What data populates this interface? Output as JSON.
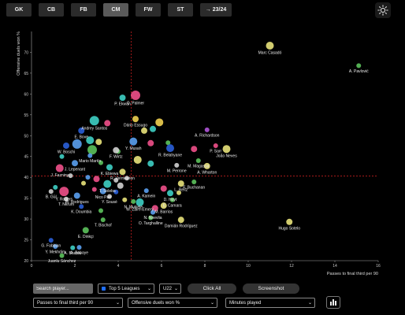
{
  "position_tabs": [
    {
      "label": "GK",
      "active": false
    },
    {
      "label": "CB",
      "active": false
    },
    {
      "label": "FB",
      "active": false
    },
    {
      "label": "CM",
      "active": true
    },
    {
      "label": "FW",
      "active": false
    },
    {
      "label": "ST",
      "active": false
    },
    {
      "label": "→ 23/24",
      "active": false
    }
  ],
  "theme_toggle": {
    "icon": "sun-icon"
  },
  "controls": {
    "search_placeholder": "Search player...",
    "league_select": "Top 5 Leagues",
    "age_select": "U22",
    "click_all_label": "Click All",
    "screenshot_label": "Screenshot",
    "x_metric": "Passes to final third per 90",
    "y_metric": "Offensive duels won %",
    "size_metric": "Minutes played",
    "chart_type_icon": "bar-chart-icon"
  },
  "chart_data": {
    "type": "scatter",
    "xlabel": "Passes to final third per 90",
    "ylabel": "Offensive duels won %",
    "xlim": [
      0,
      16
    ],
    "ylim": [
      20,
      75
    ],
    "xticks": [
      0,
      2,
      4,
      6,
      8,
      10,
      12,
      14,
      16
    ],
    "yticks": [
      20,
      25,
      30,
      35,
      40,
      45,
      50,
      55,
      60,
      65,
      70
    ],
    "x_mean": 4.6,
    "y_mean": 40.3,
    "grid": false,
    "points": [
      {
        "name": "Marc Casadó",
        "x": 11.0,
        "y": 71.6,
        "r": 5,
        "color": "#e8e27a"
      },
      {
        "name": "A. Pavlović",
        "x": 15.1,
        "y": 66.8,
        "r": 3,
        "color": "#5cc25c"
      },
      {
        "name": "P. Ekwah",
        "x": 4.2,
        "y": 59.1,
        "r": 4,
        "color": "#3ecfc4"
      },
      {
        "name": "C. Palmer",
        "x": 4.8,
        "y": 59.7,
        "r": 6,
        "color": "#f0508a"
      },
      {
        "name": "Dário Essugo",
        "x": 4.8,
        "y": 54.0,
        "r": 4,
        "color": "#f0d050"
      },
      {
        "name": "Andrey Santos",
        "x": 2.9,
        "y": 53.6,
        "r": 6,
        "color": "#3ecfc4"
      },
      {
        "name": "E. Bove",
        "x": 2.3,
        "y": 51.2,
        "r": 4,
        "color": "#2a5fd8"
      },
      {
        "name": "A. Richardson",
        "x": 8.1,
        "y": 51.4,
        "r": 3,
        "color": "#b055d8"
      },
      {
        "name": "Y. Musah",
        "x": 4.7,
        "y": 48.6,
        "r": 5,
        "color": "#5aa0f0"
      },
      {
        "name": "W. Boschi",
        "x": 1.6,
        "y": 47.6,
        "r": 4,
        "color": "#2a5fd8"
      },
      {
        "name": "F. Wirtz",
        "x": 3.9,
        "y": 46.5,
        "r": 4,
        "color": "#d0d0d0"
      },
      {
        "name": "R. Belahyane",
        "x": 6.4,
        "y": 47.0,
        "r": 5,
        "color": "#2a5fd8"
      },
      {
        "name": "P. Sarr",
        "x": 8.5,
        "y": 47.6,
        "r": 3,
        "color": "#f0508a"
      },
      {
        "name": "João Neves",
        "x": 9.0,
        "y": 46.8,
        "r": 5,
        "color": "#e8e27a"
      },
      {
        "name": "Mario Martín",
        "x": 2.7,
        "y": 45.2,
        "r": 3,
        "color": "#5aa0f0"
      },
      {
        "name": "J. Lepenant",
        "x": 2.0,
        "y": 43.4,
        "r": 4,
        "color": "#5aa0f0"
      },
      {
        "name": "M. Magassa",
        "x": 7.7,
        "y": 44.0,
        "r": 3,
        "color": "#5cc25c"
      },
      {
        "name": "M. Perrone",
        "x": 6.7,
        "y": 42.9,
        "r": 3,
        "color": "#d0d0d0"
      },
      {
        "name": "A. Wharton",
        "x": 8.1,
        "y": 42.7,
        "r": 4,
        "color": "#e8e27a"
      },
      {
        "name": "J. Fazniny",
        "x": 1.3,
        "y": 42.2,
        "r": 5,
        "color": "#f0508a"
      },
      {
        "name": "K. Ebiewa",
        "x": 3.6,
        "y": 42.4,
        "r": 4,
        "color": "#3ecfc4"
      },
      {
        "name": "R. Vermeeren",
        "x": 4.2,
        "y": 41.3,
        "r": 4,
        "color": "#e8e27a"
      },
      {
        "name": "T. Soleba",
        "x": 3.5,
        "y": 38.4,
        "r": 5,
        "color": "#3ecfc4"
      },
      {
        "name": "L. Reitz",
        "x": 6.9,
        "y": 38.5,
        "r": 4,
        "color": "#e8e27a"
      },
      {
        "name": "F. Buchanan",
        "x": 7.5,
        "y": 38.9,
        "r": 3,
        "color": "#5cc25c"
      },
      {
        "name": "A. Kamein",
        "x": 5.3,
        "y": 36.8,
        "r": 3,
        "color": "#5aa0f0"
      },
      {
        "name": "D. Hoyt",
        "x": 6.4,
        "y": 36.2,
        "r": 4,
        "color": "#3ecfc4"
      },
      {
        "name": "B. Gül",
        "x": 0.9,
        "y": 36.6,
        "r": 3,
        "color": "#d0d0d0"
      },
      {
        "name": "Y. Rogers",
        "x": 1.5,
        "y": 36.6,
        "r": 6,
        "color": "#f0508a"
      },
      {
        "name": "Nico Paz",
        "x": 3.3,
        "y": 36.7,
        "r": 4,
        "color": "#5aa0f0"
      },
      {
        "name": "Y. Sousé",
        "x": 3.6,
        "y": 35.4,
        "r": 3,
        "color": "#d0d0d0"
      },
      {
        "name": "E. Camara",
        "x": 6.5,
        "y": 34.6,
        "r": 3,
        "color": "#5cc25c"
      },
      {
        "name": "M. Rodrigues",
        "x": 2.1,
        "y": 35.6,
        "r": 4,
        "color": "#5aa0f0"
      },
      {
        "name": "T. Nkrum",
        "x": 1.6,
        "y": 34.8,
        "r": 3,
        "color": "#d0d0d0"
      },
      {
        "name": "N. Mukiele",
        "x": 4.7,
        "y": 34.2,
        "r": 3,
        "color": "#5cc25c"
      },
      {
        "name": "W. Zaire-Emery",
        "x": 5.0,
        "y": 34.0,
        "r": 5,
        "color": "#3ecfc4"
      },
      {
        "name": "K. Doumbia",
        "x": 2.3,
        "y": 33.0,
        "r": 3,
        "color": "#2a5fd8"
      },
      {
        "name": "M. Barrios",
        "x": 6.1,
        "y": 33.2,
        "r": 4,
        "color": "#e8e27a"
      },
      {
        "name": "N. Nnevlia",
        "x": 5.6,
        "y": 31.6,
        "r": 3,
        "color": "#5aa0f0"
      },
      {
        "name": "Damián Rodríguez",
        "x": 6.9,
        "y": 29.8,
        "r": 4,
        "color": "#e8e27a"
      },
      {
        "name": "O. Targhalline",
        "x": 5.5,
        "y": 30.3,
        "r": 3,
        "color": "#5cc25c"
      },
      {
        "name": "T. Bischof",
        "x": 3.3,
        "y": 29.8,
        "r": 3,
        "color": "#5cc25c"
      },
      {
        "name": "Hugo Sotelo",
        "x": 11.9,
        "y": 29.3,
        "r": 4,
        "color": "#e8e27a"
      },
      {
        "name": "E. Dinkçi",
        "x": 2.5,
        "y": 27.3,
        "r": 4,
        "color": "#5cc25c"
      },
      {
        "name": "G. Fabbian",
        "x": 0.9,
        "y": 24.9,
        "r": 3,
        "color": "#2a5fd8"
      },
      {
        "name": "Y. Mekhdim",
        "x": 1.1,
        "y": 23.4,
        "r": 3,
        "color": "#5aa0f0"
      },
      {
        "name": "A. Bhabia",
        "x": 1.9,
        "y": 23.1,
        "r": 3,
        "color": "#3ecfc4"
      },
      {
        "name": "A. Babaye",
        "x": 2.2,
        "y": 23.2,
        "r": 3,
        "color": "#5aa0f0"
      },
      {
        "name": "Juanlu Sánchez",
        "x": 1.4,
        "y": 21.2,
        "r": 3,
        "color": "#5cc25c"
      }
    ],
    "unlabeled_points": [
      {
        "x": 3.5,
        "y": 53.0,
        "r": 4,
        "color": "#f0508a"
      },
      {
        "x": 5.9,
        "y": 53.2,
        "r": 5,
        "color": "#f0d050"
      },
      {
        "x": 5.2,
        "y": 51.2,
        "r": 4,
        "color": "#e8e27a"
      },
      {
        "x": 5.6,
        "y": 51.6,
        "r": 4,
        "color": "#3ecfc4"
      },
      {
        "x": 2.7,
        "y": 48.9,
        "r": 5,
        "color": "#3ecfc4"
      },
      {
        "x": 2.1,
        "y": 48.0,
        "r": 6,
        "color": "#5aa0f0"
      },
      {
        "x": 3.1,
        "y": 48.5,
        "r": 4,
        "color": "#e8e27a"
      },
      {
        "x": 2.8,
        "y": 46.6,
        "r": 6,
        "color": "#5cc25c"
      },
      {
        "x": 5.5,
        "y": 48.2,
        "r": 4,
        "color": "#f0508a"
      },
      {
        "x": 6.3,
        "y": 48.3,
        "r": 3,
        "color": "#5cc25c"
      },
      {
        "x": 7.5,
        "y": 46.8,
        "r": 4,
        "color": "#f0508a"
      },
      {
        "x": 4.0,
        "y": 46.2,
        "r": 3,
        "color": "#5cc25c"
      },
      {
        "x": 1.4,
        "y": 45.0,
        "r": 3,
        "color": "#3ecfc4"
      },
      {
        "x": 4.9,
        "y": 44.2,
        "r": 5,
        "color": "#e8e27a"
      },
      {
        "x": 5.5,
        "y": 43.3,
        "r": 4,
        "color": "#3ecfc4"
      },
      {
        "x": 3.2,
        "y": 43.5,
        "r": 3,
        "color": "#5cc25c"
      },
      {
        "x": 1.8,
        "y": 40.4,
        "r": 3,
        "color": "#d0d0d0"
      },
      {
        "x": 2.6,
        "y": 40.0,
        "r": 3,
        "color": "#5aa0f0"
      },
      {
        "x": 3.0,
        "y": 39.6,
        "r": 4,
        "color": "#f0508a"
      },
      {
        "x": 3.9,
        "y": 39.3,
        "r": 3,
        "color": "#d0d0d0"
      },
      {
        "x": 4.4,
        "y": 39.8,
        "r": 3,
        "color": "#d0d0d0"
      },
      {
        "x": 2.4,
        "y": 38.6,
        "r": 3,
        "color": "#e8e27a"
      },
      {
        "x": 4.1,
        "y": 38.0,
        "r": 4,
        "color": "#d0d0d0"
      },
      {
        "x": 2.9,
        "y": 37.1,
        "r": 3,
        "color": "#f0508a"
      },
      {
        "x": 3.9,
        "y": 36.5,
        "r": 3,
        "color": "#2a5fd8"
      },
      {
        "x": 1.1,
        "y": 37.6,
        "r": 3,
        "color": "#3ecfc4"
      },
      {
        "x": 6.1,
        "y": 37.3,
        "r": 4,
        "color": "#f0508a"
      },
      {
        "x": 6.8,
        "y": 36.3,
        "r": 3,
        "color": "#e8e27a"
      },
      {
        "x": 4.3,
        "y": 34.6,
        "r": 3,
        "color": "#e8e27a"
      },
      {
        "x": 5.7,
        "y": 32.6,
        "r": 4,
        "color": "#f0508a"
      },
      {
        "x": 3.2,
        "y": 32.0,
        "r": 3,
        "color": "#5cc25c"
      }
    ]
  }
}
